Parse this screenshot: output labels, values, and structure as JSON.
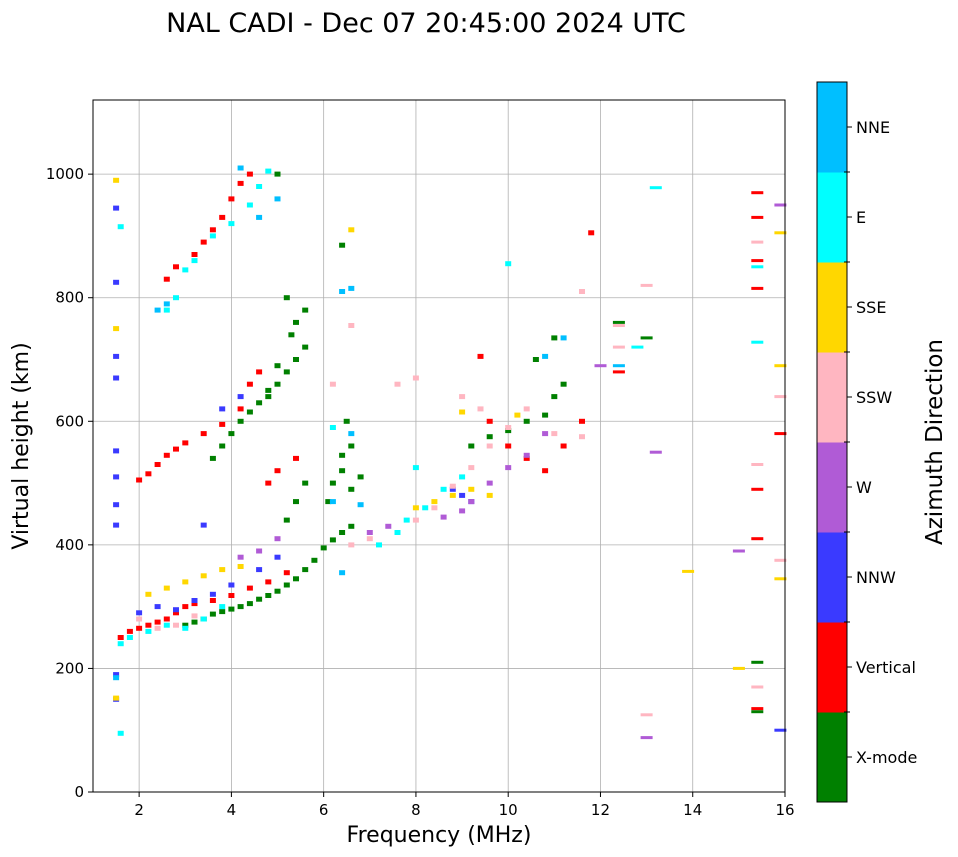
{
  "chart_data": {
    "type": "scatter",
    "title": "NAL CADI - Dec 07 20:45:00 2024 UTC",
    "xlabel": "Frequency (MHz)",
    "ylabel": "Virtual height (km)",
    "xlim": [
      1,
      16
    ],
    "ylim": [
      0,
      1120
    ],
    "xticks": [
      2,
      4,
      6,
      8,
      10,
      12,
      14,
      16
    ],
    "yticks": [
      0,
      200,
      400,
      600,
      800,
      1000
    ],
    "grid": true,
    "legend_position": "right colorbar",
    "colorbar": {
      "title": "Azimuth Direction",
      "categories": [
        {
          "name": "X-mode",
          "color": "#008000"
        },
        {
          "name": "Vertical",
          "color": "#ff0000"
        },
        {
          "name": "NNW",
          "color": "#3a3aff"
        },
        {
          "name": "W",
          "color": "#b05bd6"
        },
        {
          "name": "SSW",
          "color": "#ffb6c1"
        },
        {
          "name": "SSE",
          "color": "#ffd700"
        },
        {
          "name": "E",
          "color": "#00ffff"
        },
        {
          "name": "NNE",
          "color": "#00bfff"
        }
      ]
    },
    "series": [
      {
        "name": "X-mode",
        "points": [
          [
            3.0,
            270
          ],
          [
            3.2,
            275
          ],
          [
            3.4,
            280
          ],
          [
            3.6,
            288
          ],
          [
            3.8,
            292
          ],
          [
            4.0,
            296
          ],
          [
            4.2,
            300
          ],
          [
            4.4,
            305
          ],
          [
            4.6,
            312
          ],
          [
            4.8,
            318
          ],
          [
            5.0,
            325
          ],
          [
            5.2,
            335
          ],
          [
            5.4,
            345
          ],
          [
            5.6,
            360
          ],
          [
            5.8,
            375
          ],
          [
            6.0,
            395
          ],
          [
            6.2,
            408
          ],
          [
            6.4,
            420
          ],
          [
            6.6,
            430
          ],
          [
            5.2,
            440
          ],
          [
            5.4,
            470
          ],
          [
            5.6,
            500
          ],
          [
            6.1,
            470
          ],
          [
            6.2,
            500
          ],
          [
            6.4,
            520
          ],
          [
            6.6,
            490
          ],
          [
            6.8,
            510
          ],
          [
            6.4,
            545
          ],
          [
            6.6,
            560
          ],
          [
            6.5,
            600
          ],
          [
            3.6,
            540
          ],
          [
            3.8,
            560
          ],
          [
            4.0,
            580
          ],
          [
            4.2,
            600
          ],
          [
            4.4,
            615
          ],
          [
            4.6,
            630
          ],
          [
            4.8,
            650
          ],
          [
            5.0,
            660
          ],
          [
            5.2,
            680
          ],
          [
            5.4,
            700
          ],
          [
            5.6,
            720
          ],
          [
            5.4,
            760
          ],
          [
            5.6,
            780
          ],
          [
            5.2,
            800
          ],
          [
            4.8,
            640
          ],
          [
            5.0,
            690
          ],
          [
            5.3,
            740
          ],
          [
            9.2,
            560
          ],
          [
            9.6,
            575
          ],
          [
            10.0,
            585
          ],
          [
            10.4,
            600
          ],
          [
            10.8,
            610
          ],
          [
            11.0,
            640
          ],
          [
            11.2,
            660
          ],
          [
            10.6,
            700
          ],
          [
            11.0,
            735
          ],
          [
            12.4,
            760
          ],
          [
            13.0,
            735
          ],
          [
            15.4,
            210
          ],
          [
            15.4,
            130
          ],
          [
            6.4,
            885
          ],
          [
            5.0,
            1000
          ]
        ]
      },
      {
        "name": "Vertical",
        "points": [
          [
            1.6,
            250
          ],
          [
            1.8,
            260
          ],
          [
            2.0,
            265
          ],
          [
            2.2,
            270
          ],
          [
            2.4,
            275
          ],
          [
            2.6,
            280
          ],
          [
            2.8,
            290
          ],
          [
            3.0,
            300
          ],
          [
            3.2,
            305
          ],
          [
            3.6,
            310
          ],
          [
            4.0,
            318
          ],
          [
            4.4,
            330
          ],
          [
            4.8,
            340
          ],
          [
            5.2,
            355
          ],
          [
            2.0,
            505
          ],
          [
            2.2,
            515
          ],
          [
            2.4,
            530
          ],
          [
            2.6,
            545
          ],
          [
            2.8,
            555
          ],
          [
            3.0,
            565
          ],
          [
            3.4,
            580
          ],
          [
            3.8,
            595
          ],
          [
            4.2,
            620
          ],
          [
            4.4,
            660
          ],
          [
            4.6,
            680
          ],
          [
            2.6,
            830
          ],
          [
            2.8,
            850
          ],
          [
            3.2,
            870
          ],
          [
            3.4,
            890
          ],
          [
            3.6,
            910
          ],
          [
            3.8,
            930
          ],
          [
            4.0,
            960
          ],
          [
            4.2,
            985
          ],
          [
            4.4,
            1000
          ],
          [
            4.8,
            500
          ],
          [
            5.0,
            520
          ],
          [
            5.4,
            540
          ],
          [
            9.4,
            705
          ],
          [
            9.6,
            600
          ],
          [
            10.0,
            560
          ],
          [
            10.4,
            540
          ],
          [
            10.8,
            520
          ],
          [
            11.2,
            560
          ],
          [
            11.6,
            600
          ],
          [
            11.8,
            905
          ],
          [
            12.4,
            680
          ],
          [
            15.4,
            970
          ],
          [
            15.4,
            930
          ],
          [
            15.4,
            860
          ],
          [
            15.4,
            815
          ],
          [
            15.4,
            490
          ],
          [
            15.4,
            410
          ],
          [
            15.4,
            135
          ],
          [
            15.9,
            580
          ]
        ]
      },
      {
        "name": "NNW",
        "points": [
          [
            1.5,
            190
          ],
          [
            1.5,
            150
          ],
          [
            1.5,
            465
          ],
          [
            1.5,
            432
          ],
          [
            1.5,
            510
          ],
          [
            1.5,
            552
          ],
          [
            1.5,
            670
          ],
          [
            1.5,
            705
          ],
          [
            1.5,
            825
          ],
          [
            1.5,
            945
          ],
          [
            2.0,
            290
          ],
          [
            2.4,
            300
          ],
          [
            2.8,
            295
          ],
          [
            3.2,
            310
          ],
          [
            3.6,
            320
          ],
          [
            4.0,
            335
          ],
          [
            3.4,
            432
          ],
          [
            4.6,
            360
          ],
          [
            5.0,
            380
          ],
          [
            3.8,
            620
          ],
          [
            4.2,
            640
          ],
          [
            8.8,
            490
          ],
          [
            9.0,
            480
          ],
          [
            9.2,
            470
          ],
          [
            15.9,
            100
          ]
        ]
      },
      {
        "name": "W",
        "points": [
          [
            4.2,
            380
          ],
          [
            4.6,
            390
          ],
          [
            5.0,
            410
          ],
          [
            7.0,
            420
          ],
          [
            7.4,
            430
          ],
          [
            8.6,
            445
          ],
          [
            9.0,
            455
          ],
          [
            9.2,
            470
          ],
          [
            9.6,
            500
          ],
          [
            10.0,
            525
          ],
          [
            10.4,
            545
          ],
          [
            10.8,
            580
          ],
          [
            12.0,
            690
          ],
          [
            13.2,
            550
          ],
          [
            13.0,
            88
          ],
          [
            15.0,
            390
          ],
          [
            15.9,
            950
          ]
        ]
      },
      {
        "name": "SSW",
        "points": [
          [
            2.0,
            280
          ],
          [
            2.4,
            265
          ],
          [
            2.8,
            270
          ],
          [
            3.2,
            285
          ],
          [
            6.6,
            400
          ],
          [
            7.0,
            410
          ],
          [
            7.6,
            420
          ],
          [
            8.0,
            440
          ],
          [
            8.4,
            460
          ],
          [
            8.8,
            495
          ],
          [
            9.2,
            525
          ],
          [
            9.6,
            560
          ],
          [
            10.0,
            590
          ],
          [
            10.4,
            620
          ],
          [
            11.0,
            580
          ],
          [
            11.6,
            575
          ],
          [
            6.2,
            660
          ],
          [
            7.6,
            660
          ],
          [
            8.0,
            670
          ],
          [
            9.0,
            640
          ],
          [
            9.4,
            620
          ],
          [
            12.4,
            755
          ],
          [
            12.4,
            720
          ],
          [
            13.0,
            820
          ],
          [
            13.0,
            125
          ],
          [
            15.4,
            890
          ],
          [
            15.4,
            530
          ],
          [
            15.4,
            170
          ],
          [
            15.9,
            375
          ],
          [
            15.9,
            640
          ],
          [
            11.6,
            810
          ],
          [
            6.6,
            755
          ]
        ]
      },
      {
        "name": "SSE",
        "points": [
          [
            1.5,
            990
          ],
          [
            1.5,
            750
          ],
          [
            1.5,
            152
          ],
          [
            2.2,
            320
          ],
          [
            2.6,
            330
          ],
          [
            3.0,
            340
          ],
          [
            3.4,
            350
          ],
          [
            3.8,
            360
          ],
          [
            4.2,
            365
          ],
          [
            8.0,
            460
          ],
          [
            8.4,
            470
          ],
          [
            8.8,
            480
          ],
          [
            9.2,
            490
          ],
          [
            9.6,
            480
          ],
          [
            6.6,
            910
          ],
          [
            13.9,
            357
          ],
          [
            15.0,
            200
          ],
          [
            15.9,
            345
          ],
          [
            15.9,
            690
          ],
          [
            15.9,
            905
          ],
          [
            9.0,
            615
          ],
          [
            10.2,
            610
          ]
        ]
      },
      {
        "name": "E",
        "points": [
          [
            1.6,
            240
          ],
          [
            1.8,
            250
          ],
          [
            2.2,
            260
          ],
          [
            2.6,
            270
          ],
          [
            3.0,
            265
          ],
          [
            3.4,
            280
          ],
          [
            3.8,
            300
          ],
          [
            7.2,
            400
          ],
          [
            7.6,
            420
          ],
          [
            7.8,
            440
          ],
          [
            8.2,
            460
          ],
          [
            8.6,
            490
          ],
          [
            9.0,
            510
          ],
          [
            8.0,
            525
          ],
          [
            2.6,
            780
          ],
          [
            2.8,
            800
          ],
          [
            3.0,
            845
          ],
          [
            3.2,
            860
          ],
          [
            3.6,
            900
          ],
          [
            4.0,
            920
          ],
          [
            4.4,
            950
          ],
          [
            4.6,
            980
          ],
          [
            4.8,
            1005
          ],
          [
            10.0,
            855
          ],
          [
            12.8,
            720
          ],
          [
            13.2,
            978
          ],
          [
            15.4,
            850
          ],
          [
            15.4,
            728
          ],
          [
            1.6,
            95
          ],
          [
            1.6,
            915
          ],
          [
            6.2,
            590
          ]
        ]
      },
      {
        "name": "NNE",
        "points": [
          [
            2.4,
            780
          ],
          [
            2.6,
            790
          ],
          [
            4.6,
            930
          ],
          [
            5.0,
            960
          ],
          [
            4.2,
            1010
          ],
          [
            6.4,
            810
          ],
          [
            6.6,
            815
          ],
          [
            6.2,
            470
          ],
          [
            6.8,
            465
          ],
          [
            6.4,
            355
          ],
          [
            6.6,
            580
          ],
          [
            10.8,
            705
          ],
          [
            11.2,
            735
          ],
          [
            12.4,
            690
          ],
          [
            1.5,
            185
          ]
        ]
      }
    ]
  }
}
